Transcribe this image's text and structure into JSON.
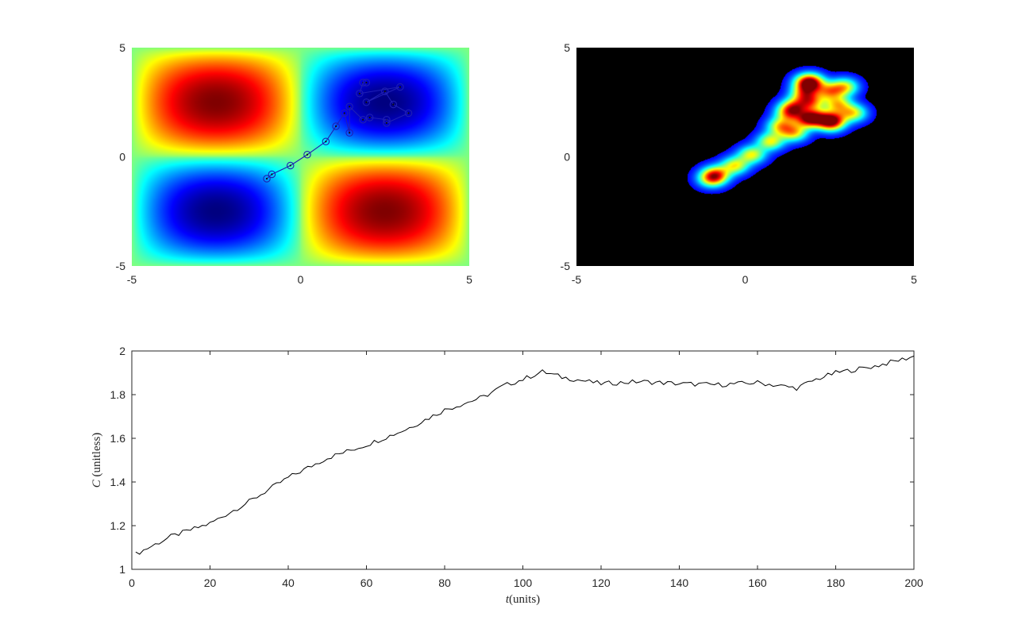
{
  "chart_data": [
    {
      "id": "left-heatmap",
      "type": "heatmap",
      "title": "",
      "xlabel": "",
      "ylabel": "",
      "xlim": [
        -5,
        5
      ],
      "ylim": [
        -5,
        5
      ],
      "x_ticks": [
        "-5",
        "0",
        "5"
      ],
      "y_ticks": [
        "-5",
        "0",
        "5"
      ],
      "colormap": "jet",
      "field": "sin-product landscape",
      "path": {
        "color": "#1f1fb4",
        "marker": "circle-dot",
        "points": [
          [
            -1.0,
            -1.0
          ],
          [
            -0.85,
            -0.8
          ],
          [
            -0.3,
            -0.4
          ],
          [
            0.2,
            0.1
          ],
          [
            0.75,
            0.7
          ],
          [
            1.05,
            1.4
          ],
          [
            1.3,
            2.0
          ],
          [
            1.45,
            1.1
          ],
          [
            1.45,
            2.3
          ],
          [
            1.85,
            1.7
          ],
          [
            2.05,
            1.8
          ],
          [
            2.55,
            1.7
          ],
          [
            2.55,
            1.55
          ],
          [
            3.2,
            2.0
          ],
          [
            2.75,
            2.4
          ],
          [
            2.5,
            3.0
          ],
          [
            1.95,
            2.5
          ],
          [
            2.95,
            3.2
          ],
          [
            1.75,
            2.9
          ],
          [
            1.85,
            3.4
          ],
          [
            1.95,
            3.4
          ]
        ]
      }
    },
    {
      "id": "right-heatmap",
      "type": "heatmap",
      "title": "",
      "xlabel": "",
      "ylabel": "",
      "xlim": [
        -5,
        5
      ],
      "ylim": [
        -5,
        5
      ],
      "x_ticks": [
        "-5",
        "0",
        "5"
      ],
      "y_ticks": [
        "-5",
        "0",
        "5"
      ],
      "colormap": "jet-black-background",
      "background": "#000000",
      "field": "kernel density of visited points"
    },
    {
      "id": "bottom-line",
      "type": "line",
      "title": "",
      "xlabel": "t(units)",
      "ylabel": "C (unitless)",
      "xlim": [
        0,
        200
      ],
      "ylim": [
        1,
        2
      ],
      "x_ticks": [
        "0",
        "20",
        "40",
        "60",
        "80",
        "100",
        "120",
        "140",
        "160",
        "180",
        "200"
      ],
      "y_ticks": [
        "1",
        "1.2",
        "1.4",
        "1.6",
        "1.8",
        "2"
      ],
      "line_color": "#000000",
      "series": [
        {
          "x": [
            1,
            10,
            20,
            30,
            40,
            50,
            60,
            70,
            80,
            90,
            95,
            100,
            105,
            110,
            120,
            130,
            140,
            150,
            160,
            170,
            175,
            180,
            190,
            200
          ],
          "values": [
            1.07,
            1.15,
            1.21,
            1.31,
            1.42,
            1.51,
            1.57,
            1.64,
            1.73,
            1.79,
            1.84,
            1.87,
            1.905,
            1.88,
            1.85,
            1.86,
            1.85,
            1.845,
            1.855,
            1.83,
            1.87,
            1.9,
            1.93,
            1.975
          ]
        }
      ]
    }
  ]
}
